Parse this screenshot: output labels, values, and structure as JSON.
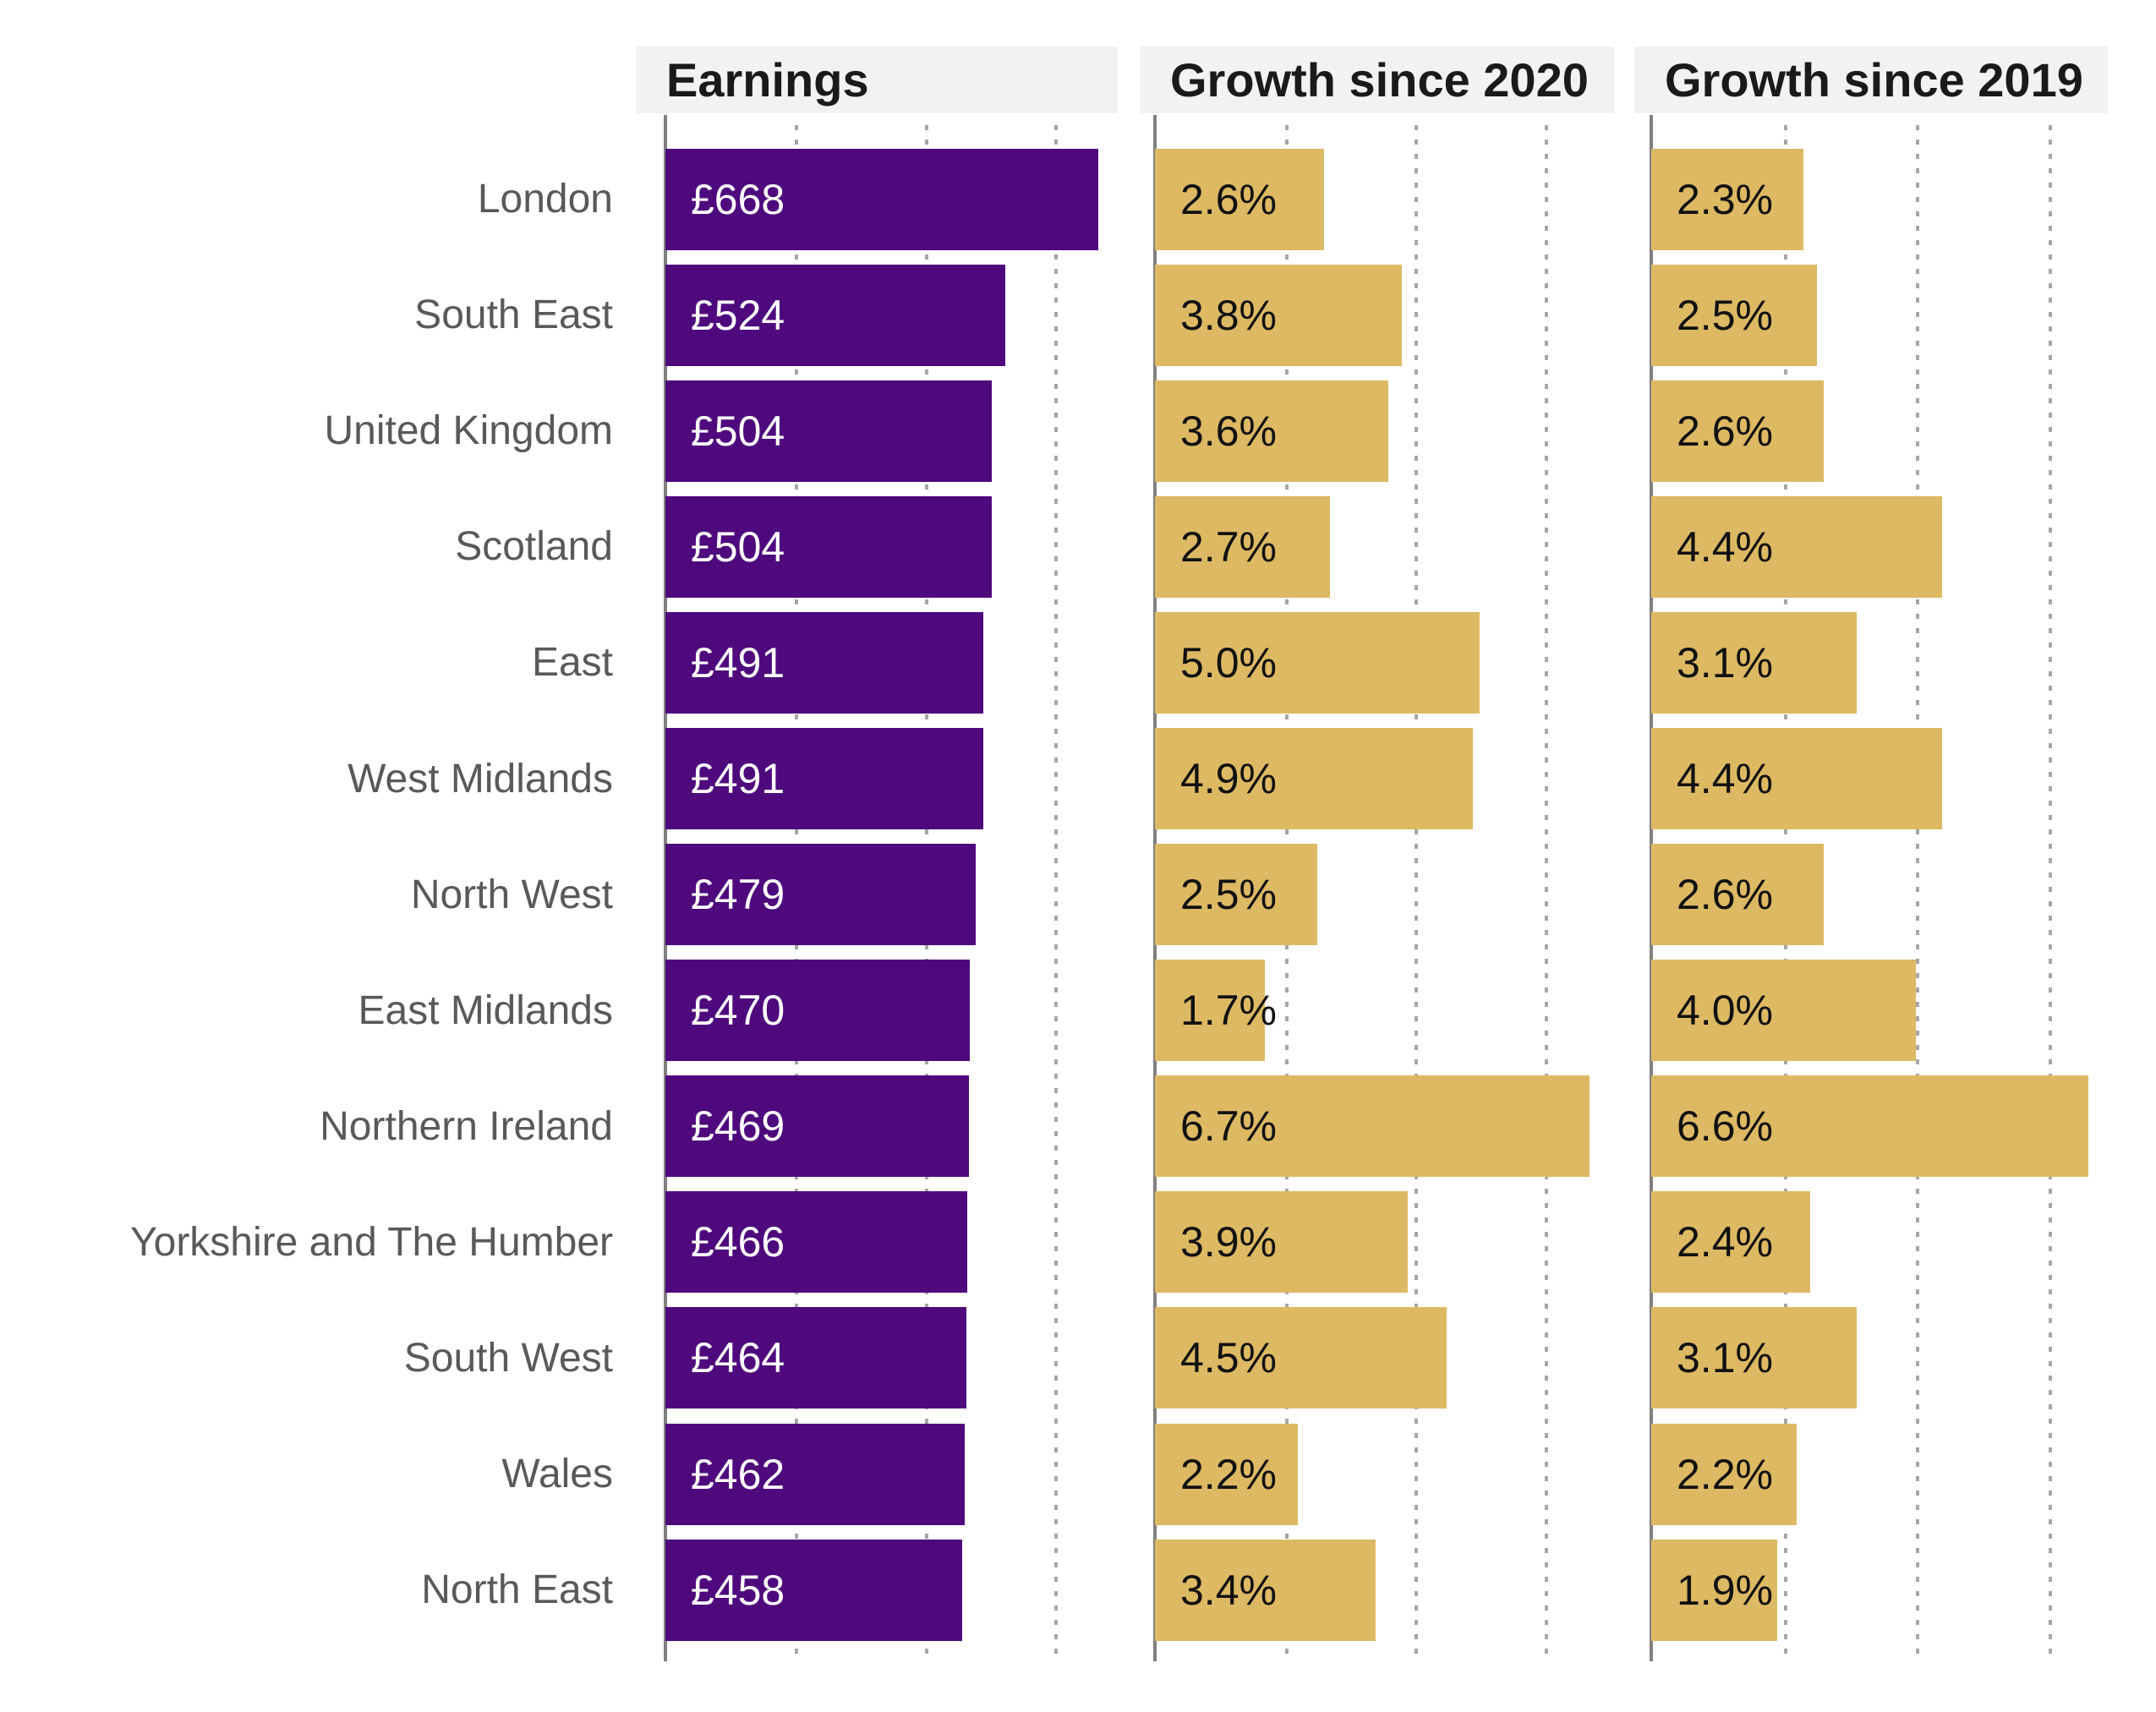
{
  "colors": {
    "bar_purple": "#4e0a7d",
    "bar_gold": "#ddb964",
    "header_bg": "#f2f2f2",
    "header_text": "#1a1a1a",
    "region_label": "#595959",
    "axis_line": "#808080",
    "gridline": "#a6a6a6",
    "value_light": "#ffffff",
    "value_dark": "#111111"
  },
  "panels": [
    {
      "title": "Earnings",
      "series_index": 0,
      "xmin": 0,
      "xmax": 715,
      "gridlines": [
        200,
        400,
        600
      ],
      "bar_class": "purple"
    },
    {
      "title": "Growth since 2020",
      "series_index": 1,
      "xmin": 0,
      "xmax": 7.1,
      "gridlines": [
        2,
        4,
        6
      ],
      "bar_class": "gold"
    },
    {
      "title": "Growth since 2019",
      "series_index": 2,
      "xmin": 0,
      "xmax": 7.0,
      "gridlines": [
        2,
        4,
        6
      ],
      "bar_class": "gold"
    }
  ],
  "chart_data": {
    "type": "bar",
    "orientation": "horizontal",
    "title": "",
    "legend": "none",
    "grid": "dotted-vertical",
    "categories": [
      "London",
      "South East",
      "United Kingdom",
      "Scotland",
      "East",
      "West Midlands",
      "North West",
      "East Midlands",
      "Northern Ireland",
      "Yorkshire and The Humber",
      "South West",
      "Wales",
      "North East"
    ],
    "series": [
      {
        "name": "Earnings",
        "unit": "£ per week",
        "values": [
          668,
          524,
          504,
          504,
          491,
          491,
          479,
          470,
          469,
          466,
          464,
          462,
          458
        ],
        "labels": [
          "£668",
          "£524",
          "£504",
          "£504",
          "£491",
          "£491",
          "£479",
          "£470",
          "£469",
          "£466",
          "£464",
          "£462",
          "£458"
        ],
        "axis_range": [
          0,
          715
        ],
        "axis_gridlines": [
          200,
          400,
          600
        ]
      },
      {
        "name": "Growth since 2020",
        "unit": "%",
        "values": [
          2.6,
          3.8,
          3.6,
          2.7,
          5.0,
          4.9,
          2.5,
          1.7,
          6.7,
          3.9,
          4.5,
          2.2,
          3.4
        ],
        "labels": [
          "2.6%",
          "3.8%",
          "3.6%",
          "2.7%",
          "5.0%",
          "4.9%",
          "2.5%",
          "1.7%",
          "6.7%",
          "3.9%",
          "4.5%",
          "2.2%",
          "3.4%"
        ],
        "axis_range": [
          0,
          7.1
        ],
        "axis_gridlines": [
          2,
          4,
          6
        ]
      },
      {
        "name": "Growth since 2019",
        "unit": "%",
        "values": [
          2.3,
          2.5,
          2.6,
          4.4,
          3.1,
          4.4,
          2.6,
          4.0,
          6.6,
          2.4,
          3.1,
          2.2,
          1.9
        ],
        "labels": [
          "2.3%",
          "2.5%",
          "2.6%",
          "4.4%",
          "3.1%",
          "4.4%",
          "2.6%",
          "4.0%",
          "6.6%",
          "2.4%",
          "3.1%",
          "2.2%",
          "1.9%"
        ],
        "axis_range": [
          0,
          7.0
        ],
        "axis_gridlines": [
          2,
          4,
          6
        ]
      }
    ]
  }
}
